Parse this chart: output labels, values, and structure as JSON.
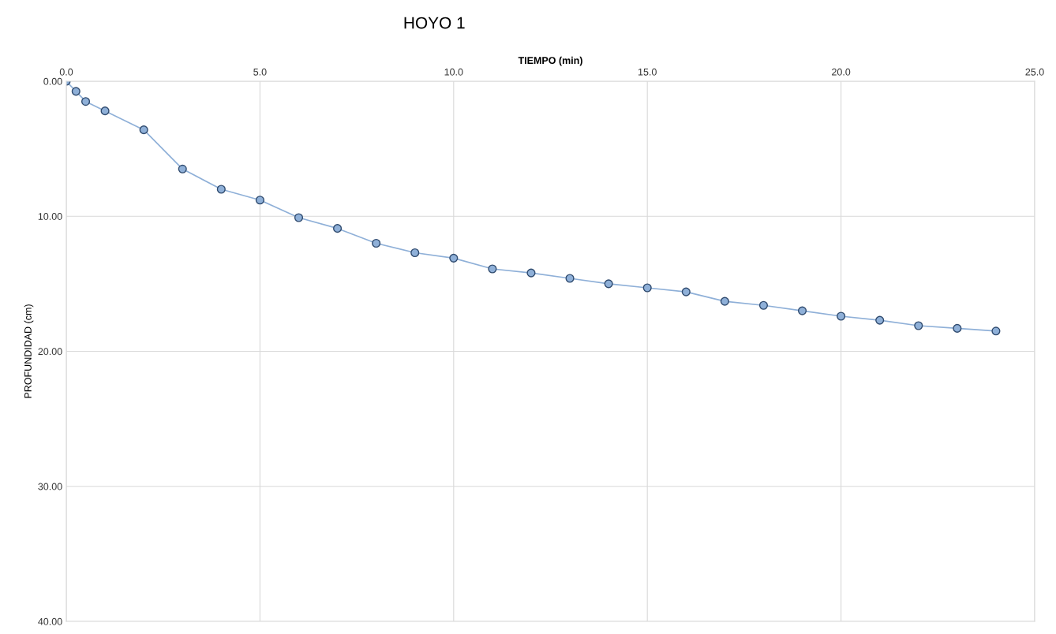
{
  "chart_data": {
    "type": "line",
    "title": "HOYO 1",
    "xlabel": "TIEMPO (min)",
    "ylabel": "PROFUNDIDAD (cm)",
    "x": [
      0,
      0.25,
      0.5,
      1,
      2,
      3,
      4,
      5,
      6,
      7,
      8,
      9,
      10,
      11,
      12,
      13,
      14,
      15,
      16,
      17,
      18,
      19,
      20,
      21,
      22,
      23,
      24
    ],
    "series": [
      {
        "color": "#8fb0d8",
        "values": [
          0,
          0.75,
          1.5,
          2.2,
          3.6,
          6.5,
          8.0,
          8.8,
          10.1,
          10.9,
          12.0,
          12.7,
          13.1,
          13.9,
          14.2,
          14.6,
          15.0,
          15.3,
          15.6,
          16.3,
          16.6,
          17.0,
          17.4,
          17.7,
          18.1,
          18.3,
          18.5
        ]
      }
    ],
    "xlim": [
      0,
      25
    ],
    "xticks": [
      {
        "value": 0,
        "label": "0.0"
      },
      {
        "value": 5,
        "label": "5.0"
      },
      {
        "value": 10,
        "label": "10.0"
      },
      {
        "value": 15,
        "label": "15.0"
      },
      {
        "value": 20,
        "label": "20.0"
      },
      {
        "value": 25,
        "label": "25.0"
      }
    ],
    "ylim": [
      40,
      0
    ],
    "yticks": [
      {
        "value": 0,
        "label": "0.00"
      },
      {
        "value": 10,
        "label": "10.00"
      },
      {
        "value": 20,
        "label": "20.00"
      },
      {
        "value": 30,
        "label": "30.00"
      },
      {
        "value": 40,
        "label": "40.00"
      }
    ],
    "grid": true,
    "marker": "circle",
    "line_style": "solid"
  }
}
